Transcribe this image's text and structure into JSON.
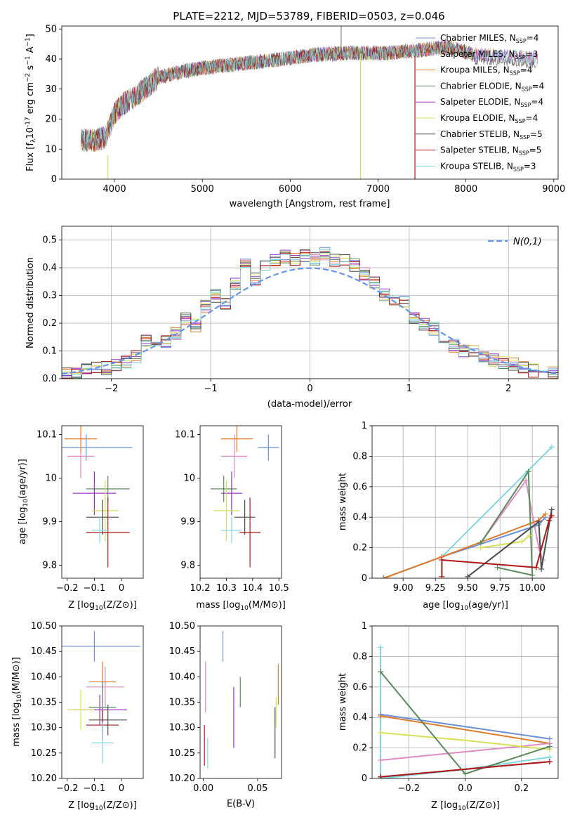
{
  "figure": {
    "title": "PLATE=2212, MJD=53789, FIBERID=0503, z=0.046"
  },
  "colors": {
    "Chabrier MILES": "#6b8fd6",
    "Salpeter MILES": "#e08ac4",
    "Kroupa MILES": "#e07b2a",
    "Chabrier ELODIE": "#5a8a5a",
    "Salpeter ELODIE": "#9b30c8",
    "Kroupa ELODIE": "#d6e05a",
    "Chabrier STELIB": "#4a4a4a",
    "Salpeter STELIB": "#b01818",
    "Kroupa STELIB": "#7fd8e0",
    "normal": "#6495ed"
  },
  "chart_data": [
    {
      "type": "line",
      "xlabel": "wavelength [Angstrom, rest frame]",
      "ylabel_main": "Flux [f",
      "ylabel_sub": "λ",
      "ylabel_rest": "10",
      "ylabel_exp": "-17",
      "ylabel_units": " erg cm",
      "xlim": [
        3400,
        9050
      ],
      "ylim": [
        0,
        51
      ],
      "xticks": [
        4000,
        5000,
        6000,
        7000,
        8000,
        9000
      ],
      "yticks": [
        0,
        10,
        20,
        30,
        40,
        50
      ],
      "continuum": [
        [
          3620,
          13
        ],
        [
          3800,
          13
        ],
        [
          3900,
          14
        ],
        [
          4000,
          22
        ],
        [
          4100,
          25
        ],
        [
          4300,
          29
        ],
        [
          4500,
          34
        ],
        [
          4800,
          36
        ],
        [
          5000,
          37
        ],
        [
          5300,
          38
        ],
        [
          5600,
          39
        ],
        [
          5900,
          40
        ],
        [
          6300,
          41.5
        ],
        [
          6700,
          42
        ],
        [
          7100,
          42
        ],
        [
          7500,
          43
        ],
        [
          7800,
          44
        ],
        [
          8100,
          41.5
        ],
        [
          8500,
          41
        ],
        [
          8800,
          40
        ]
      ],
      "series": [
        {
          "name": "Chabrier MILES",
          "nssp": "4"
        },
        {
          "name": "Salpeter MILES",
          "nssp": "3"
        },
        {
          "name": "Kroupa MILES",
          "nssp": "4"
        },
        {
          "name": "Chabrier ELODIE",
          "nssp": "4"
        },
        {
          "name": "Salpeter ELODIE",
          "nssp": "4"
        },
        {
          "name": "Kroupa ELODIE",
          "nssp": "4"
        },
        {
          "name": "Chabrier STELIB",
          "nssp": "5"
        },
        {
          "name": "Salpeter STELIB",
          "nssp": "5"
        },
        {
          "name": "Kroupa STELIB",
          "nssp": "3"
        }
      ]
    },
    {
      "type": "bar",
      "xlabel": "(data-model)/error",
      "ylabel": "Normed distribution",
      "xlim": [
        -2.5,
        2.5
      ],
      "ylim": [
        0,
        0.55
      ],
      "xticks": [
        -2,
        -1,
        0,
        1,
        2
      ],
      "yticks": [
        0.0,
        0.1,
        0.2,
        0.3,
        0.4,
        0.5
      ],
      "grid": true,
      "legend": "N(0,1)",
      "bin_edges": [
        -2.5,
        -2.4,
        -2.3,
        -2.2,
        -2.1,
        -2.0,
        -1.9,
        -1.8,
        -1.7,
        -1.6,
        -1.5,
        -1.4,
        -1.3,
        -1.2,
        -1.1,
        -1.0,
        -0.9,
        -0.8,
        -0.7,
        -0.6,
        -0.5,
        -0.4,
        -0.3,
        -0.2,
        -0.1,
        0.0,
        0.1,
        0.2,
        0.3,
        0.4,
        0.5,
        0.6,
        0.7,
        0.8,
        0.9,
        1.0,
        1.1,
        1.2,
        1.3,
        1.4,
        1.5,
        1.6,
        1.7,
        1.8,
        1.9,
        2.0,
        2.1,
        2.2,
        2.3,
        2.4,
        2.5
      ],
      "densities": [
        0.02,
        0.025,
        0.03,
        0.035,
        0.04,
        0.05,
        0.06,
        0.08,
        0.14,
        0.12,
        0.13,
        0.16,
        0.22,
        0.19,
        0.26,
        0.3,
        0.27,
        0.34,
        0.41,
        0.36,
        0.41,
        0.43,
        0.44,
        0.43,
        0.44,
        0.43,
        0.45,
        0.43,
        0.43,
        0.41,
        0.38,
        0.35,
        0.3,
        0.27,
        0.28,
        0.22,
        0.2,
        0.18,
        0.13,
        0.12,
        0.1,
        0.1,
        0.08,
        0.07,
        0.06,
        0.05,
        0.04,
        0.03,
        0.025,
        0.02
      ]
    },
    {
      "type": "scatter",
      "xlabel": "Z [log",
      "ylabel": "age  [log",
      "xlim": [
        -0.22,
        0.08
      ],
      "ylim": [
        9.77,
        10.12
      ],
      "xticks": [
        -0.2,
        -0.1,
        0.0
      ],
      "yticks": [
        9.8,
        9.9,
        10.0,
        10.1
      ],
      "points": [
        [
          -0.13,
          10.07,
          0.17,
          0.03
        ],
        [
          -0.15,
          10.05,
          0.05,
          0.05
        ],
        [
          -0.15,
          10.09,
          0.06,
          0.03
        ],
        [
          -0.05,
          9.975,
          0.08,
          0.03
        ],
        [
          -0.1,
          9.965,
          0.08,
          0.05
        ],
        [
          -0.06,
          9.925,
          0.05,
          0.07
        ],
        [
          -0.07,
          9.91,
          0.06,
          0.04
        ],
        [
          -0.05,
          9.875,
          0.08,
          0.08
        ],
        [
          -0.08,
          9.88,
          0.03,
          0.03
        ]
      ]
    },
    {
      "type": "scatter",
      "xlabel": "mass [log",
      "ylabel": "",
      "xlim": [
        10.2,
        10.51
      ],
      "ylim": [
        9.77,
        10.12
      ],
      "xticks": [
        10.2,
        10.3,
        10.4,
        10.5
      ],
      "yticks": [
        9.8,
        9.9,
        10.0,
        10.1
      ],
      "points": [
        [
          10.46,
          10.07,
          0.04,
          0.03
        ],
        [
          10.33,
          10.05,
          0.05,
          0.05
        ],
        [
          10.34,
          10.09,
          0.06,
          0.03
        ],
        [
          10.29,
          9.975,
          0.05,
          0.03
        ],
        [
          10.32,
          9.965,
          0.04,
          0.05
        ],
        [
          10.3,
          9.925,
          0.05,
          0.07
        ],
        [
          10.37,
          9.91,
          0.04,
          0.04
        ],
        [
          10.39,
          9.875,
          0.04,
          0.08
        ],
        [
          10.32,
          9.88,
          0.04,
          0.03
        ]
      ]
    },
    {
      "type": "line",
      "xlabel": "age  [log",
      "ylabel": "mass weight",
      "xlim": [
        8.76,
        10.2
      ],
      "ylim": [
        0,
        1
      ],
      "xticks": [
        9.0,
        9.25,
        9.5,
        9.75,
        10.0
      ],
      "xticklabels": [
        "9.00",
        "9.25",
        "9.50",
        "9.75",
        "10.00"
      ],
      "yticks": [
        0.0,
        0.2,
        0.4,
        0.6,
        0.8,
        1.0
      ],
      "grid": true,
      "series": [
        {
          "name": "Kroupa STELIB",
          "x": [
            8.85,
            9.3,
            10.15
          ],
          "y": [
            0.0,
            0.14,
            0.86
          ]
        },
        {
          "name": "Chabrier MILES",
          "x": [
            8.85,
            9.3,
            10.05,
            10.1
          ],
          "y": [
            0.0,
            0.14,
            0.35,
            0.4
          ]
        },
        {
          "name": "Salpeter MILES",
          "x": [
            9.6,
            9.95,
            10.05,
            10.08
          ],
          "y": [
            0.23,
            0.64,
            0.2,
            0.12
          ]
        },
        {
          "name": "Kroupa MILES",
          "x": [
            8.85,
            9.3,
            10.05,
            10.1
          ],
          "y": [
            0.0,
            0.14,
            0.38,
            0.42
          ]
        },
        {
          "name": "Chabrier ELODIE",
          "x": [
            9.6,
            9.97,
            10.0,
            9.73
          ],
          "y": [
            0.23,
            0.7,
            0.02,
            0.07
          ]
        },
        {
          "name": "Kroupa ELODIE",
          "x": [
            9.6,
            9.92,
            9.98
          ],
          "y": [
            0.2,
            0.24,
            0.28
          ]
        },
        {
          "name": "Chabrier STELIB",
          "x": [
            9.5,
            10.05,
            10.07,
            10.15
          ],
          "y": [
            0.01,
            0.37,
            0.06,
            0.45
          ]
        },
        {
          "name": "Salpeter STELIB",
          "x": [
            9.3,
            9.3,
            10.03,
            10.13,
            10.15
          ],
          "y": [
            0.01,
            0.12,
            0.07,
            0.38,
            0.41
          ]
        }
      ]
    },
    {
      "type": "scatter",
      "xlabel": "Z [log",
      "ylabel": "mass [log",
      "xlim": [
        -0.22,
        0.08
      ],
      "ylim": [
        10.2,
        10.5
      ],
      "xticks": [
        -0.2,
        -0.1,
        0.0
      ],
      "yticks": [
        10.2,
        10.25,
        10.3,
        10.35,
        10.4,
        10.45,
        10.5
      ],
      "yticklabels": [
        "10.20",
        "10.25",
        "10.30",
        "10.35",
        "10.40",
        "10.45",
        "10.50"
      ],
      "points": [
        [
          -0.1,
          10.46,
          0.17,
          0.03
        ],
        [
          -0.06,
          10.38,
          0.07,
          0.04
        ],
        [
          -0.07,
          10.39,
          0.05,
          0.04
        ],
        [
          -0.07,
          10.34,
          0.05,
          0.05
        ],
        [
          -0.08,
          10.335,
          0.1,
          0.03
        ],
        [
          -0.15,
          10.335,
          0.05,
          0.04
        ],
        [
          -0.05,
          10.315,
          0.07,
          0.03
        ],
        [
          -0.07,
          10.305,
          0.06,
          0.03
        ],
        [
          -0.07,
          10.27,
          0.04,
          0.04
        ]
      ]
    },
    {
      "type": "scatter",
      "xlabel": "E(B-V)",
      "ylabel": "",
      "xlim": [
        -0.003,
        0.072
      ],
      "ylim": [
        10.2,
        10.5
      ],
      "xticks": [
        0.0,
        0.05
      ],
      "xticklabels": [
        "0.00",
        "0.05"
      ],
      "yticks": [
        10.2,
        10.25,
        10.3,
        10.35,
        10.4,
        10.45,
        10.5
      ],
      "yticklabels": [
        "10.20",
        "10.25",
        "10.30",
        "10.35",
        "10.40",
        "10.45",
        "10.50"
      ],
      "points": [
        [
          0.018,
          10.46,
          0,
          0.03
        ],
        [
          0.002,
          10.38,
          0,
          0.05
        ],
        [
          0.069,
          10.385,
          0,
          0.04
        ],
        [
          0.034,
          10.37,
          0,
          0.03
        ],
        [
          0.028,
          10.32,
          0,
          0.06
        ],
        [
          0.067,
          10.33,
          0,
          0.03
        ],
        [
          0.066,
          10.29,
          0,
          0.05
        ],
        [
          0.001,
          10.265,
          0,
          0.04
        ],
        [
          0.004,
          10.25,
          0,
          0.03
        ]
      ]
    },
    {
      "type": "line",
      "xlabel": "Z [log",
      "ylabel": "mass weight",
      "xlim": [
        -0.33,
        0.33
      ],
      "ylim": [
        0,
        1
      ],
      "xticks": [
        -0.2,
        0.0,
        0.2
      ],
      "xticklabels": [
        "−0.2",
        "0.0",
        "0.2"
      ],
      "yticks": [
        0.0,
        0.2,
        0.4,
        0.6,
        0.8,
        1.0
      ],
      "grid": true,
      "series": [
        {
          "name": "Kroupa STELIB",
          "x": [
            -0.3,
            -0.3,
            0.0,
            0.3
          ],
          "y": [
            0.86,
            0.0,
            0.06,
            0.14
          ]
        },
        {
          "name": "Chabrier MILES",
          "x": [
            -0.3,
            0.3
          ],
          "y": [
            0.42,
            0.26
          ]
        },
        {
          "name": "Kroupa MILES",
          "x": [
            -0.3,
            0.3
          ],
          "y": [
            0.41,
            0.23
          ]
        },
        {
          "name": "Salpeter MILES",
          "x": [
            -0.3,
            0.3
          ],
          "y": [
            0.12,
            0.23
          ]
        },
        {
          "name": "Kroupa ELODIE",
          "x": [
            -0.3,
            0.0,
            0.3
          ],
          "y": [
            0.3,
            0.25,
            0.19
          ]
        },
        {
          "name": "Chabrier ELODIE",
          "x": [
            -0.3,
            0.0,
            0.3
          ],
          "y": [
            0.7,
            0.03,
            0.21
          ]
        },
        {
          "name": "Chabrier STELIB",
          "x": [
            -0.3,
            0.3
          ],
          "y": [
            0.01,
            0.11
          ]
        },
        {
          "name": "Salpeter STELIB",
          "x": [
            -0.3,
            0.3
          ],
          "y": [
            0.01,
            0.11
          ]
        }
      ]
    }
  ]
}
